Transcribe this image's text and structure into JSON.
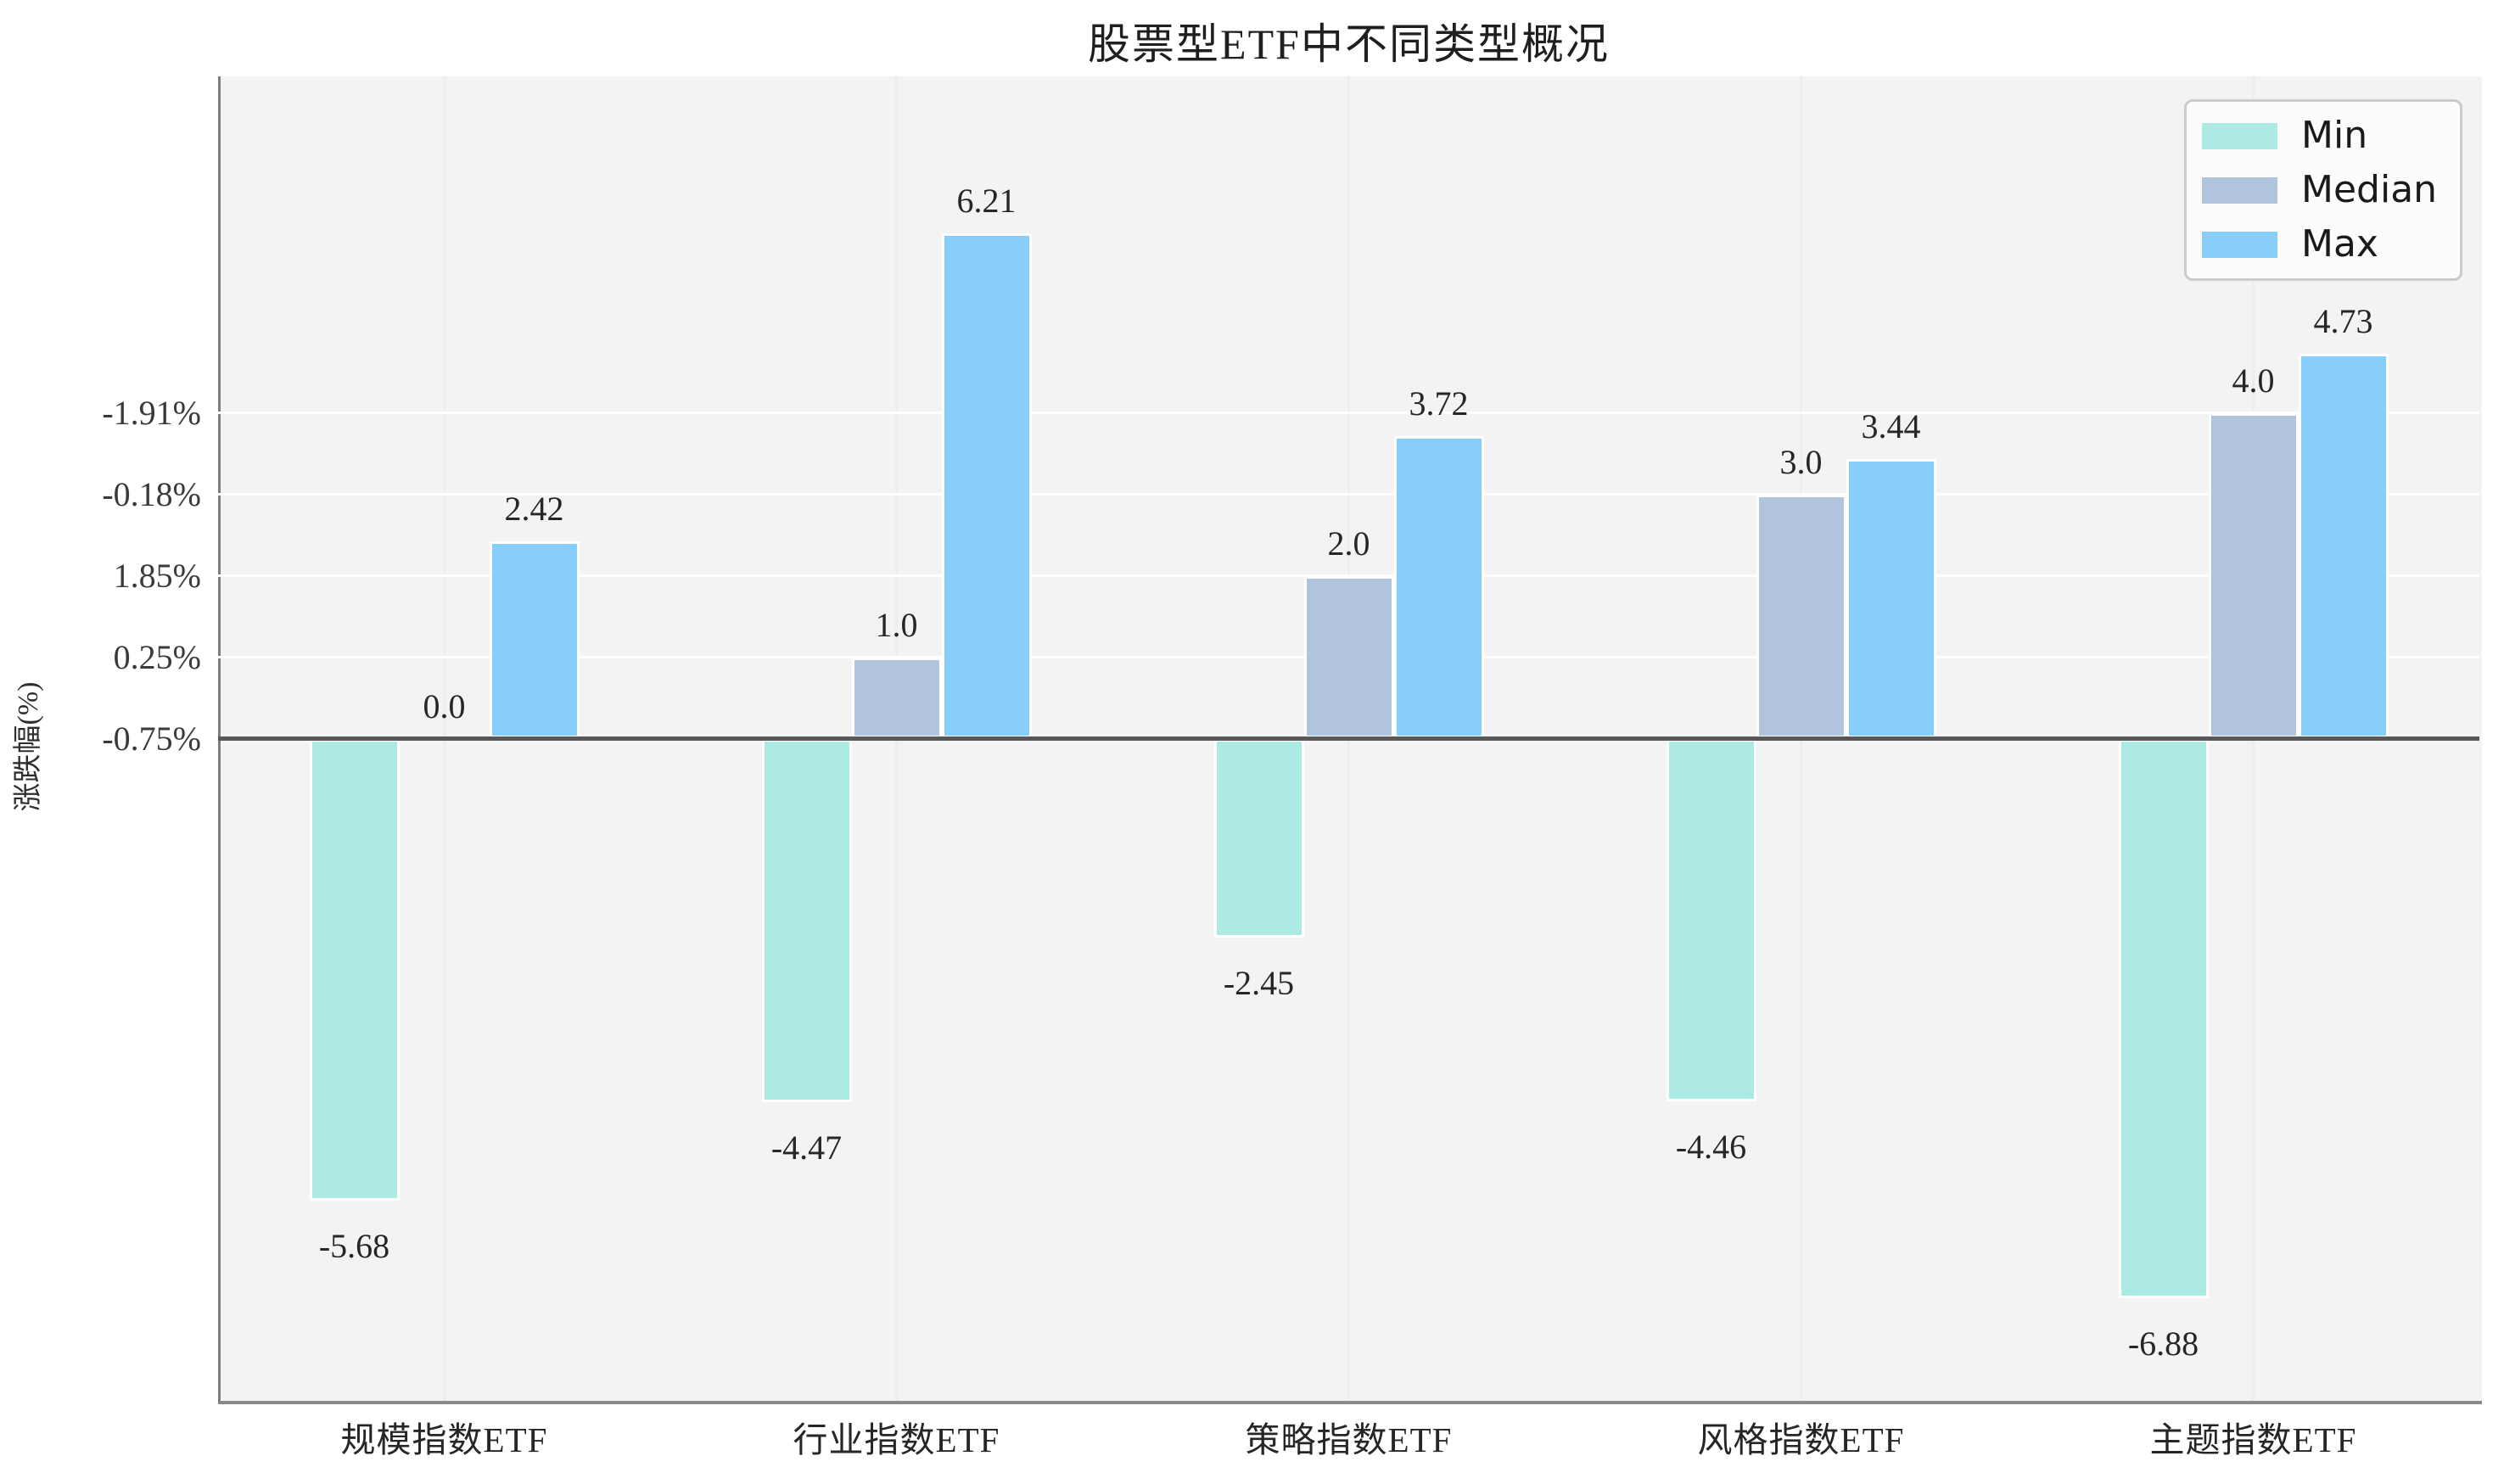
{
  "chart_data": {
    "type": "bar",
    "title": "股票型ETF中不同类型概况",
    "ylabel": "涨跌幅(%)",
    "xlabel": "",
    "categories": [
      "规模指数ETF",
      "行业指数ETF",
      "策略指数ETF",
      "风格指数ETF",
      "主题指数ETF"
    ],
    "series": [
      {
        "name": "Min",
        "color": "#aeeae4",
        "values": [
          -5.68,
          -4.47,
          -2.45,
          -4.46,
          -6.88
        ],
        "labels": [
          "-5.68",
          "-4.47",
          "-2.45",
          "-4.46",
          "-6.88"
        ]
      },
      {
        "name": "Median",
        "color": "#b0c4de",
        "values": [
          0.0,
          1.0,
          2.0,
          3.0,
          4.0
        ],
        "labels": [
          "0.0",
          "1.0",
          "2.0",
          "3.0",
          "4.0"
        ]
      },
      {
        "name": "Max",
        "color": "#87cefa",
        "values": [
          2.42,
          6.21,
          3.72,
          3.44,
          4.73
        ],
        "labels": [
          "2.42",
          "6.21",
          "3.72",
          "3.44",
          "4.73"
        ]
      }
    ],
    "y_ticks": [
      {
        "value": 4,
        "label": "-1.91%"
      },
      {
        "value": 3,
        "label": "-0.18%"
      },
      {
        "value": 2,
        "label": "1.85%"
      },
      {
        "value": 1,
        "label": "0.25%"
      },
      {
        "value": 0,
        "label": "-0.75%"
      }
    ],
    "ylim": [
      -8.14,
      8.14
    ],
    "grid": true,
    "legend_position": "upper right",
    "colors": {
      "plot_background": "#f3f3f4",
      "horizontal_grid": "#ffffff",
      "vertical_grid": "#ededee",
      "zero_line": "#58585a",
      "spine": "#808080",
      "label_text": "#262626"
    }
  }
}
